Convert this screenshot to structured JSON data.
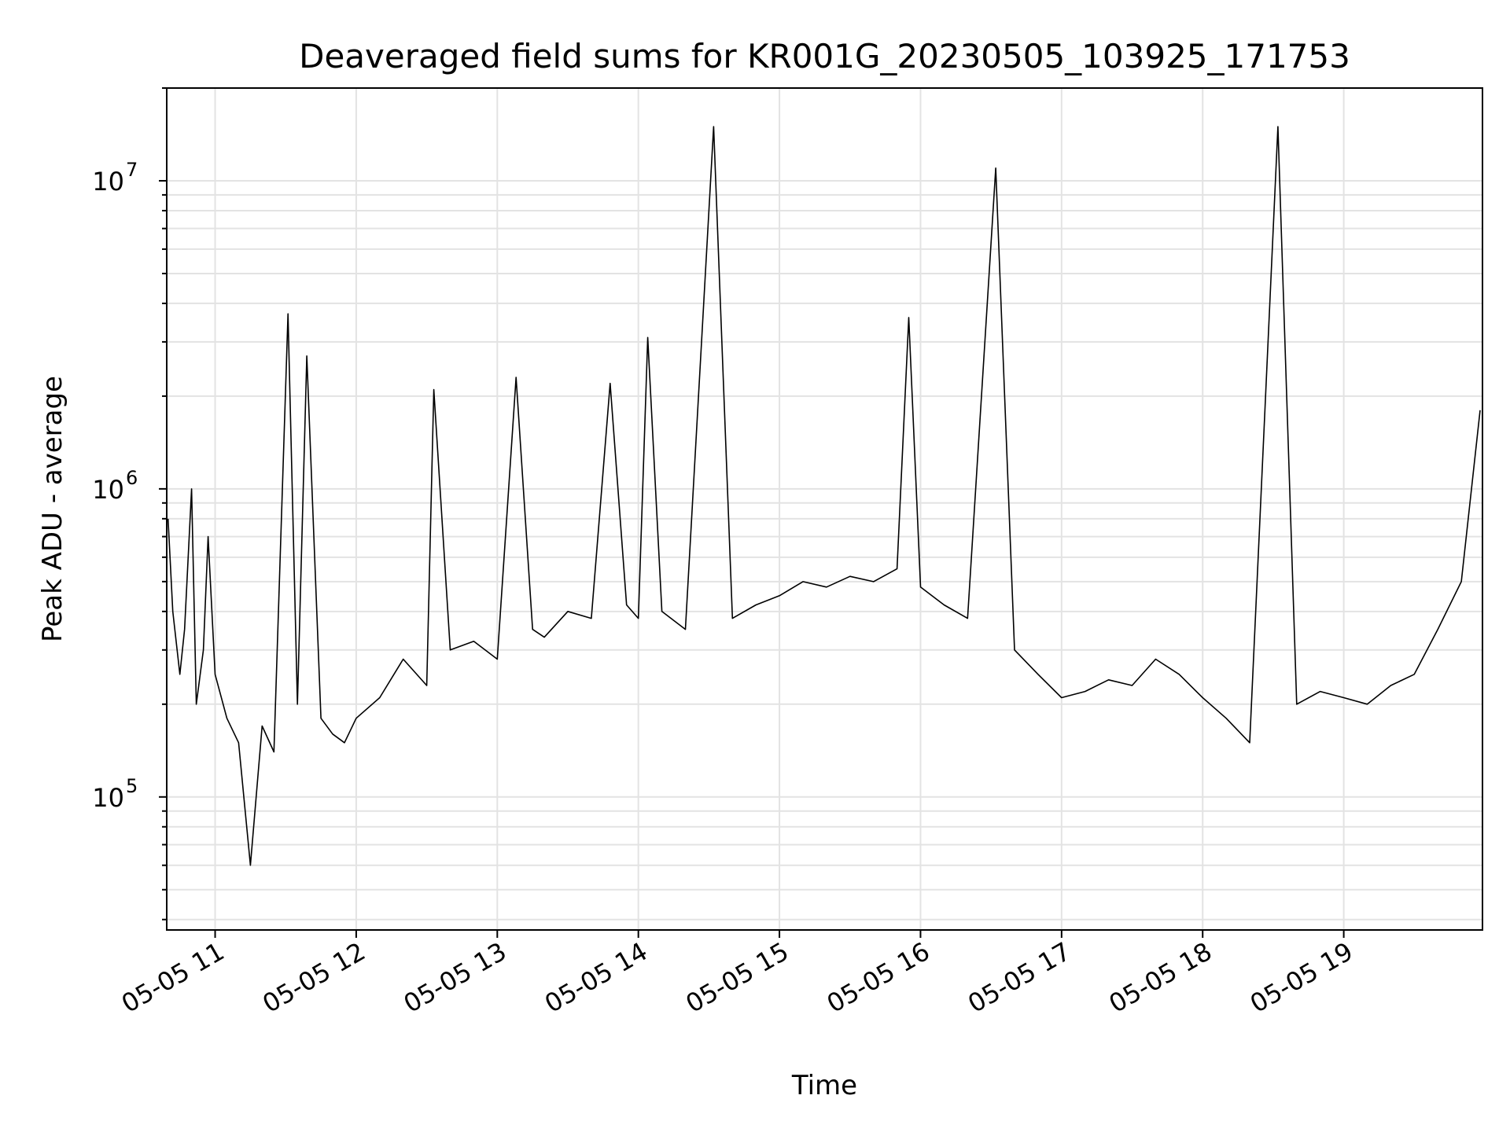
{
  "chart_data": {
    "type": "line",
    "title": "Deaveraged field sums for KR001G_20230505_103925_171753",
    "xlabel": "Time",
    "ylabel": "Peak ADU - average",
    "yscale": "log",
    "ylim": [
      37000,
      20000000
    ],
    "xlim": [
      "2023-05-05 10:39:25",
      "2023-05-05 19:59:00"
    ],
    "grid": true,
    "line_color": "#000000",
    "x_ticks": [
      {
        "value": "2023-05-05 11:00",
        "label": "05-05 11"
      },
      {
        "value": "2023-05-05 12:00",
        "label": "05-05 12"
      },
      {
        "value": "2023-05-05 13:00",
        "label": "05-05 13"
      },
      {
        "value": "2023-05-05 14:00",
        "label": "05-05 14"
      },
      {
        "value": "2023-05-05 15:00",
        "label": "05-05 15"
      },
      {
        "value": "2023-05-05 16:00",
        "label": "05-05 16"
      },
      {
        "value": "2023-05-05 17:00",
        "label": "05-05 17"
      },
      {
        "value": "2023-05-05 18:00",
        "label": "05-05 18"
      },
      {
        "value": "2023-05-05 19:00",
        "label": "05-05 19"
      }
    ],
    "y_ticks": [
      {
        "value": 100000,
        "base": "10",
        "exp": "5"
      },
      {
        "value": 1000000,
        "base": "10",
        "exp": "6"
      },
      {
        "value": 10000000,
        "base": "10",
        "exp": "7"
      }
    ],
    "series": [
      {
        "x": [
          "2023-05-05 10:40",
          "2023-05-05 10:42",
          "2023-05-05 10:45",
          "2023-05-05 10:47",
          "2023-05-05 10:50",
          "2023-05-05 10:52",
          "2023-05-05 10:55",
          "2023-05-05 10:57",
          "2023-05-05 11:00",
          "2023-05-05 11:05",
          "2023-05-05 11:10",
          "2023-05-05 11:15",
          "2023-05-05 11:20",
          "2023-05-05 11:25",
          "2023-05-05 11:31",
          "2023-05-05 11:35",
          "2023-05-05 11:39",
          "2023-05-05 11:45",
          "2023-05-05 11:50",
          "2023-05-05 11:55",
          "2023-05-05 12:00",
          "2023-05-05 12:10",
          "2023-05-05 12:20",
          "2023-05-05 12:30",
          "2023-05-05 12:33",
          "2023-05-05 12:40",
          "2023-05-05 12:50",
          "2023-05-05 13:00",
          "2023-05-05 13:08",
          "2023-05-05 13:15",
          "2023-05-05 13:20",
          "2023-05-05 13:30",
          "2023-05-05 13:40",
          "2023-05-05 13:48",
          "2023-05-05 13:55",
          "2023-05-05 14:00",
          "2023-05-05 14:04",
          "2023-05-05 14:10",
          "2023-05-05 14:20",
          "2023-05-05 14:32",
          "2023-05-05 14:40",
          "2023-05-05 14:50",
          "2023-05-05 15:00",
          "2023-05-05 15:10",
          "2023-05-05 15:20",
          "2023-05-05 15:30",
          "2023-05-05 15:40",
          "2023-05-05 15:50",
          "2023-05-05 15:55",
          "2023-05-05 16:00",
          "2023-05-05 16:10",
          "2023-05-05 16:20",
          "2023-05-05 16:32",
          "2023-05-05 16:40",
          "2023-05-05 16:50",
          "2023-05-05 17:00",
          "2023-05-05 17:10",
          "2023-05-05 17:20",
          "2023-05-05 17:30",
          "2023-05-05 17:40",
          "2023-05-05 17:50",
          "2023-05-05 18:00",
          "2023-05-05 18:10",
          "2023-05-05 18:20",
          "2023-05-05 18:32",
          "2023-05-05 18:40",
          "2023-05-05 18:50",
          "2023-05-05 19:00",
          "2023-05-05 19:10",
          "2023-05-05 19:20",
          "2023-05-05 19:30",
          "2023-05-05 19:40",
          "2023-05-05 19:50",
          "2023-05-05 19:58"
        ],
        "values": [
          800000,
          400000,
          250000,
          350000,
          1000000,
          200000,
          300000,
          700000,
          250000,
          180000,
          150000,
          60000,
          170000,
          140000,
          3700000,
          200000,
          2700000,
          180000,
          160000,
          150000,
          180000,
          210000,
          280000,
          230000,
          2100000,
          300000,
          320000,
          280000,
          2300000,
          350000,
          330000,
          400000,
          380000,
          2200000,
          420000,
          380000,
          3100000,
          400000,
          350000,
          15000000,
          380000,
          420000,
          450000,
          500000,
          480000,
          520000,
          500000,
          550000,
          3600000,
          480000,
          420000,
          380000,
          11000000,
          300000,
          250000,
          210000,
          220000,
          240000,
          230000,
          280000,
          250000,
          210000,
          180000,
          150000,
          15000000,
          200000,
          220000,
          210000,
          200000,
          230000,
          250000,
          350000,
          500000,
          1800000
        ]
      }
    ]
  }
}
